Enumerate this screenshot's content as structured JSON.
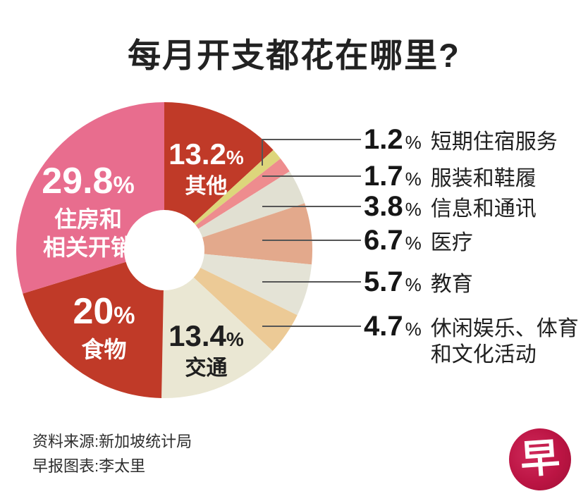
{
  "title": "每月开支都花在哪里?",
  "chart_data": {
    "type": "pie",
    "title": "每月开支都花在哪里?",
    "donut": true,
    "unit": "%",
    "start_angle_deg": 0,
    "clockwise": true,
    "legend_position": "right-callouts",
    "percent_symbol": "%",
    "slices": [
      {
        "label": "其他",
        "value": 13.2,
        "color": "#c03a28",
        "label_style": "inside-white"
      },
      {
        "label": "短期住宿服务",
        "value": 1.2,
        "color": "#ddd67b",
        "label_style": "callout"
      },
      {
        "label": "服装和鞋履",
        "value": 1.7,
        "color": "#ee8c8e",
        "label_style": "callout"
      },
      {
        "label": "信息和通讯",
        "value": 3.8,
        "color": "#e1e0d2",
        "label_style": "callout"
      },
      {
        "label": "医疗",
        "value": 6.7,
        "color": "#e3a98c",
        "label_style": "callout"
      },
      {
        "label": "教育",
        "value": 5.7,
        "color": "#e4e3d6",
        "label_style": "callout"
      },
      {
        "label": "休闲娱乐、体育\n和文化活动",
        "value": 4.7,
        "color": "#ecca96",
        "label_style": "callout"
      },
      {
        "label": "交通",
        "value": 13.4,
        "color": "#eae7d3",
        "label_style": "inside-black"
      },
      {
        "label": "食物",
        "value": 20,
        "color": "#c03a28",
        "label_style": "inside-white"
      },
      {
        "label": "住房和\n相关开销",
        "value": 29.8,
        "color": "#e86d8e",
        "label_style": "inside-white"
      }
    ]
  },
  "source": {
    "line1": "资料来源:新加坡统计局",
    "line2": "早报图表:李太里"
  },
  "logo": {
    "char": "早",
    "bg_color": "#bb1443",
    "fg_color": "#ffffff"
  },
  "style_colors": {
    "leader_line": "#555555",
    "title_text": "#222222",
    "donut_hole": "#ffffff"
  }
}
